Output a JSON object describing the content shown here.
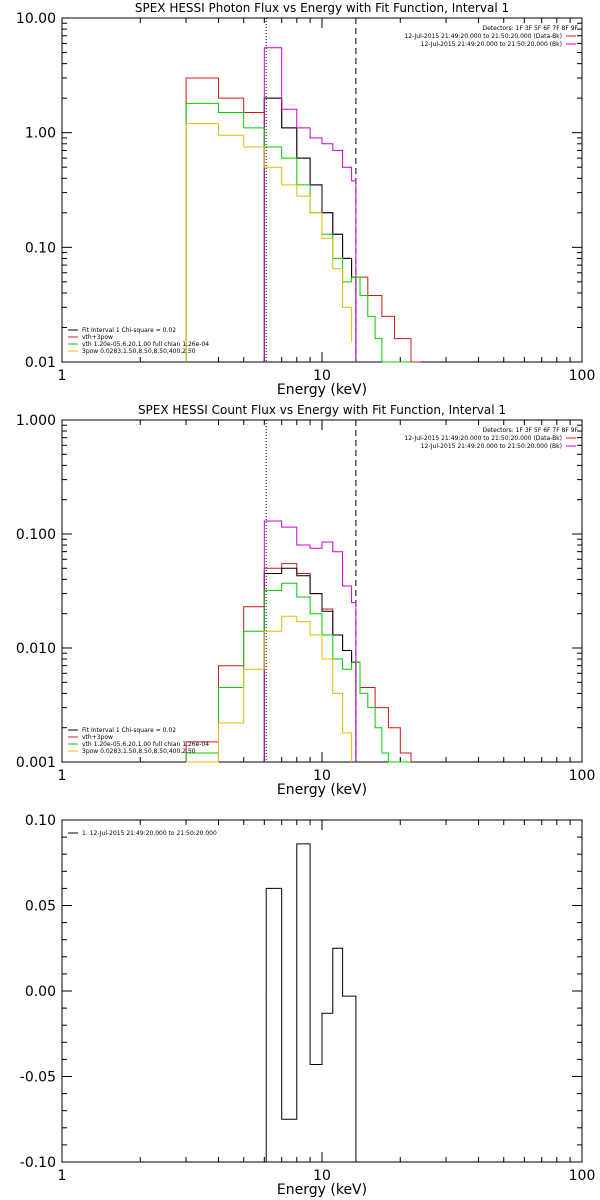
{
  "colors": {
    "data": "#d01818",
    "model": "#000000",
    "total": "#cc00cc",
    "vth": "#00cc00",
    "bpow": "#e8b800",
    "frame": "#000000"
  },
  "chart_data": [
    {
      "id": "photon",
      "type": "line",
      "title": "SPEX HESSI Photon Flux vs Energy with Fit Function, Interval 1",
      "xlabel": "Energy (keV)",
      "ylabel": "",
      "xlog": true,
      "ylog": true,
      "xlim": [
        1,
        100
      ],
      "ylim": [
        0.01,
        10
      ],
      "xticks": [
        {
          "v": 1,
          "label": "1"
        },
        {
          "v": 10,
          "label": "10"
        },
        {
          "v": 100,
          "label": "100"
        }
      ],
      "yticks": [
        {
          "v": 0.01,
          "label": "0.01"
        },
        {
          "v": 0.1,
          "label": "0.10"
        },
        {
          "v": 1,
          "label": "1.00"
        },
        {
          "v": 10,
          "label": "10.00"
        }
      ],
      "detectors": "Detectors: 1F 3F 5F 6F 7F 8F 9F",
      "legend_right": [
        {
          "text": "12-Jul-2015 21:49:20.000 to 21:50:20.000 (Data-Bk)",
          "color_key": "data"
        },
        {
          "text": "12-Jul-2015 21:49:20.000 to 21:50:20.000 (Bk)",
          "color_key": "total"
        }
      ],
      "legend_left": [
        {
          "text": "Fit Interval 1    Chi-square = 0.02",
          "color_key": "model"
        },
        {
          "text": "vth+3pow",
          "color_key": "data"
        },
        {
          "text": "vth 1.20e-05,6.20,1.00  full chian 1.26e-04",
          "color_key": "vth"
        },
        {
          "text": "3pow 0.0283,1.50,8.50,8.50,400,2.50",
          "color_key": "bpow"
        }
      ],
      "vlines": [
        {
          "x": 6.1,
          "style": "dotted"
        },
        {
          "x": 13.5,
          "style": "dashed"
        }
      ],
      "series": [
        {
          "name": "vth+3pow",
          "color_key": "data",
          "edges": [
            3,
            3.5,
            4,
            4.5,
            5,
            5.5,
            6,
            6.5,
            7,
            7.5,
            8,
            8.5,
            9,
            9.5,
            10,
            10.5,
            11,
            11.5,
            12,
            12.5,
            13,
            13.5,
            14,
            15,
            16,
            17,
            18,
            19,
            20,
            22,
            24
          ],
          "values": [
            3,
            3,
            2,
            2,
            1.5,
            1.5,
            2,
            2,
            1.1,
            1.1,
            0.6,
            0.6,
            0.35,
            0.35,
            0.2,
            0.2,
            0.13,
            0.13,
            0.08,
            0.08,
            0.055,
            0.055,
            0.055,
            0.038,
            0.038,
            0.025,
            0.025,
            0.016,
            0.016,
            0.01
          ]
        },
        {
          "name": "",
          "color_key": "model",
          "edges": [
            6,
            7,
            8,
            9,
            10,
            11,
            12,
            13,
            13.5
          ],
          "values": [
            2,
            1.1,
            0.6,
            0.35,
            0.2,
            0.13,
            0.08,
            0.055
          ]
        },
        {
          "name": "",
          "color_key": "total",
          "edges": [
            6,
            7,
            8,
            9,
            10,
            11,
            12,
            13,
            13.5
          ],
          "values": [
            5.5,
            1.6,
            1.1,
            0.9,
            0.8,
            0.7,
            0.5,
            0.38
          ]
        },
        {
          "name": "",
          "color_key": "vth",
          "edges": [
            3,
            4,
            5,
            6,
            7,
            8,
            9,
            10,
            11,
            12,
            13,
            14,
            15,
            16,
            17,
            18,
            19,
            20,
            22
          ],
          "values": [
            1.8,
            1.5,
            1.1,
            0.75,
            0.6,
            0.35,
            0.2,
            0.13,
            0.08,
            0.05,
            0.055,
            0.038,
            0.025,
            0.016,
            0.01,
            0.01,
            0.01,
            0.01
          ]
        },
        {
          "name": "",
          "color_key": "bpow",
          "edges": [
            3,
            4,
            5,
            6,
            7,
            8,
            9,
            10,
            11,
            12,
            13
          ],
          "values": [
            1.2,
            0.95,
            0.75,
            0.5,
            0.35,
            0.28,
            0.2,
            0.12,
            0.065,
            0.03,
            0.015
          ]
        }
      ]
    },
    {
      "id": "count",
      "type": "line",
      "title": "SPEX HESSI Count Flux vs Energy with Fit Function, Interval 1",
      "xlabel": "Energy (keV)",
      "ylabel": "",
      "xlog": true,
      "ylog": true,
      "xlim": [
        1,
        100
      ],
      "ylim": [
        0.001,
        1
      ],
      "xticks": [
        {
          "v": 1,
          "label": "1"
        },
        {
          "v": 10,
          "label": "10"
        },
        {
          "v": 100,
          "label": "100"
        }
      ],
      "yticks": [
        {
          "v": 0.001,
          "label": "0.001"
        },
        {
          "v": 0.01,
          "label": "0.010"
        },
        {
          "v": 0.1,
          "label": "0.100"
        },
        {
          "v": 1,
          "label": "1.000"
        }
      ],
      "detectors": "Detectors: 1F 3F 5F 6F 7F 8F 9F",
      "legend_right": [
        {
          "text": "12-Jul-2015 21:49:20.000 to 21:50:20.000 (Data-Bk)",
          "color_key": "data"
        },
        {
          "text": "12-Jul-2015 21:49:20.000 to 21:50:20.000 (Bk)",
          "color_key": "total"
        }
      ],
      "legend_left": [
        {
          "text": "Fit Interval 1    Chi-square = 0.02",
          "color_key": "model"
        },
        {
          "text": "vth+3pow",
          "color_key": "data"
        },
        {
          "text": "vth 1.20e-05,6.20,1.00  full chian 1.26e-04",
          "color_key": "vth"
        },
        {
          "text": "3pow 0.0283,1.50,8.50,8.50,400,2.50",
          "color_key": "bpow"
        }
      ],
      "vlines": [
        {
          "x": 6.1,
          "style": "dotted"
        },
        {
          "x": 13.5,
          "style": "dashed"
        }
      ],
      "series": [
        {
          "name": "vth+3pow",
          "color_key": "data",
          "edges": [
            3,
            4,
            5,
            6,
            6.5,
            7,
            7.5,
            8,
            8.5,
            9,
            9.5,
            10,
            10.5,
            11,
            11.5,
            12,
            12.5,
            13,
            13.5,
            14,
            15,
            16,
            17,
            18,
            19,
            20,
            22
          ],
          "values": [
            0.0015,
            0.007,
            0.023,
            0.05,
            0.05,
            0.055,
            0.055,
            0.045,
            0.045,
            0.03,
            0.03,
            0.022,
            0.022,
            0.013,
            0.013,
            0.0095,
            0.0095,
            0.0075,
            0.0075,
            0.0045,
            0.0045,
            0.003,
            0.003,
            0.002,
            0.002,
            0.0012
          ]
        },
        {
          "name": "",
          "color_key": "model",
          "edges": [
            6,
            7,
            8,
            9,
            10,
            11,
            12,
            13,
            13.5
          ],
          "values": [
            0.045,
            0.05,
            0.043,
            0.03,
            0.021,
            0.013,
            0.0095,
            0.0075
          ]
        },
        {
          "name": "",
          "color_key": "total",
          "edges": [
            6,
            7,
            8,
            9,
            10,
            11,
            12,
            13,
            13.5
          ],
          "values": [
            0.13,
            0.115,
            0.08,
            0.075,
            0.085,
            0.07,
            0.035,
            0.025
          ]
        },
        {
          "name": "",
          "color_key": "vth",
          "edges": [
            3,
            4,
            5,
            6,
            7,
            8,
            9,
            10,
            11,
            12,
            13,
            14,
            15,
            16,
            17,
            18,
            19,
            20,
            22
          ],
          "values": [
            0.0012,
            0.0045,
            0.014,
            0.032,
            0.037,
            0.028,
            0.02,
            0.013,
            0.008,
            0.0065,
            0.0075,
            0.004,
            0.003,
            0.002,
            0.0012,
            0.001,
            0.001,
            0.001
          ]
        },
        {
          "name": "",
          "color_key": "bpow",
          "edges": [
            3,
            4,
            5,
            6,
            7,
            8,
            9,
            10,
            11,
            12,
            13
          ],
          "values": [
            0.001,
            0.0022,
            0.0065,
            0.014,
            0.019,
            0.017,
            0.013,
            0.008,
            0.004,
            0.0018,
            0.001
          ]
        }
      ]
    },
    {
      "id": "residuals",
      "type": "line",
      "title": "",
      "xlabel": "Energy (keV)",
      "ylabel": "",
      "xlog": true,
      "ylog": false,
      "xlim": [
        1,
        100
      ],
      "ylim": [
        -0.1,
        0.1
      ],
      "xticks": [
        {
          "v": 1,
          "label": "1"
        },
        {
          "v": 10,
          "label": "10"
        },
        {
          "v": 100,
          "label": "100"
        }
      ],
      "yticks": [
        {
          "v": -0.1,
          "label": "-0.10"
        },
        {
          "v": -0.05,
          "label": "-0.05"
        },
        {
          "v": 0,
          "label": "0.00"
        },
        {
          "v": 0.05,
          "label": "0.05"
        },
        {
          "v": 0.1,
          "label": "0.10"
        }
      ],
      "legend_left": [
        {
          "text": "1. 12-Jul-2015 21:49:20.000 to 21:50:20.000",
          "color_key": "model"
        }
      ],
      "series": [
        {
          "name": "",
          "color_key": "model",
          "edges": [
            6.1,
            7,
            8,
            9,
            10,
            11,
            12,
            13.5
          ],
          "values": [
            0.06,
            -0.075,
            0.086,
            -0.043,
            -0.013,
            0.025,
            -0.003
          ]
        }
      ]
    }
  ]
}
